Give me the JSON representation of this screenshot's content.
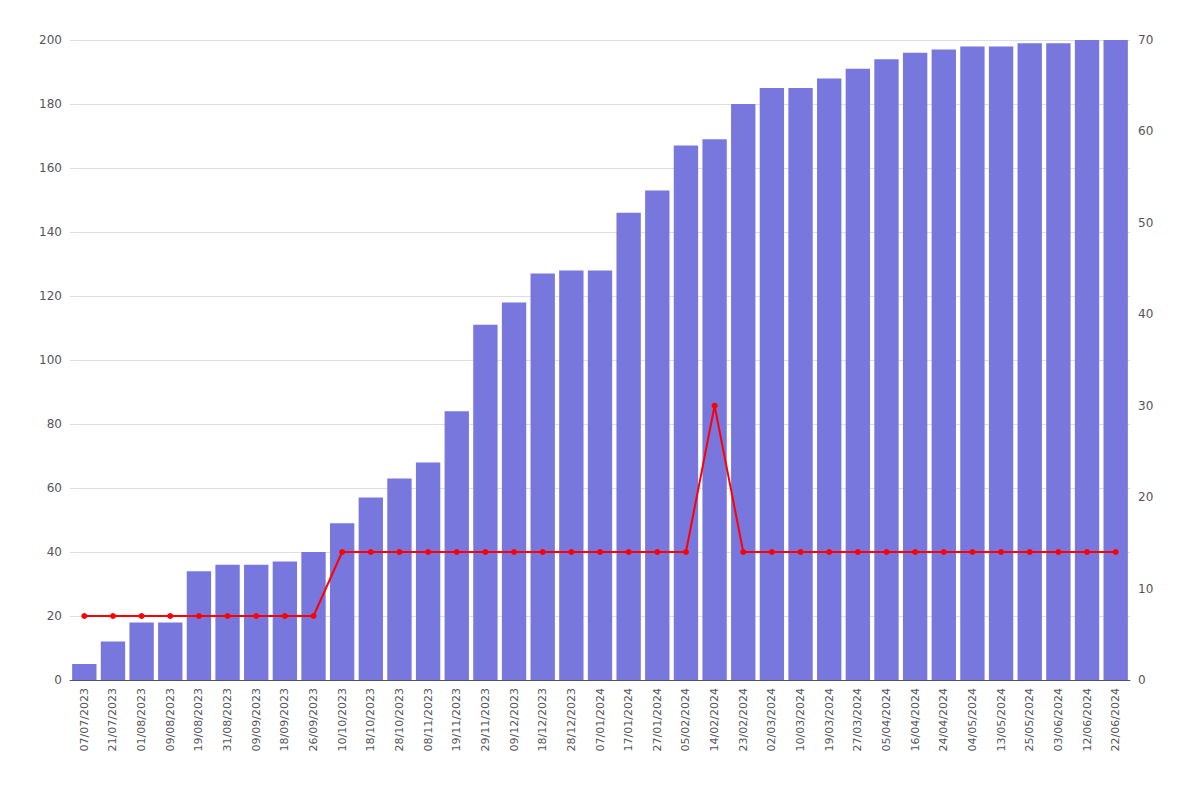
{
  "chart_data": {
    "type": "bar",
    "categories": [
      "07/07/2023",
      "21/07/2023",
      "01/08/2023",
      "09/08/2023",
      "19/08/2023",
      "31/08/2023",
      "09/09/2023",
      "18/09/2023",
      "26/09/2023",
      "10/10/2023",
      "18/10/2023",
      "28/10/2023",
      "08/11/2023",
      "19/11/2023",
      "29/11/2023",
      "09/12/2023",
      "18/12/2023",
      "28/12/2023",
      "07/01/2024",
      "17/01/2024",
      "27/01/2024",
      "05/02/2024",
      "14/02/2024",
      "23/02/2024",
      "02/03/2024",
      "10/03/2024",
      "19/03/2024",
      "27/03/2024",
      "05/04/2024",
      "16/04/2024",
      "24/04/2024",
      "04/05/2024",
      "13/05/2024",
      "25/05/2024",
      "03/06/2024",
      "12/06/2024",
      "22/06/2024"
    ],
    "series": [
      {
        "type": "bar",
        "color": "#7777dd",
        "values": [
          5,
          12,
          18,
          18,
          34,
          36,
          36,
          37,
          40,
          49,
          57,
          63,
          68,
          84,
          111,
          118,
          127,
          128,
          128,
          146,
          153,
          167,
          169,
          180,
          185,
          185,
          188,
          191,
          194,
          196,
          197,
          198,
          198,
          199,
          199,
          200,
          200
        ]
      },
      {
        "type": "line",
        "color": "#ff0000",
        "marker": "circle",
        "axis": "y2",
        "values": [
          7,
          7,
          7,
          7,
          7,
          7,
          7,
          7,
          7,
          14,
          14,
          14,
          14,
          14,
          14,
          14,
          14,
          14,
          14,
          14,
          14,
          14,
          30,
          14,
          14,
          14,
          14,
          14,
          14,
          14,
          14,
          14,
          14,
          14,
          14,
          14,
          14
        ]
      }
    ],
    "ylim": [
      0,
      200
    ],
    "yticks": [
      0,
      20,
      40,
      60,
      80,
      100,
      120,
      140,
      160,
      180,
      200
    ],
    "y2lim": [
      0,
      70
    ],
    "y2ticks": [
      0,
      10,
      20,
      30,
      40,
      50,
      60,
      70
    ],
    "grid": true
  }
}
